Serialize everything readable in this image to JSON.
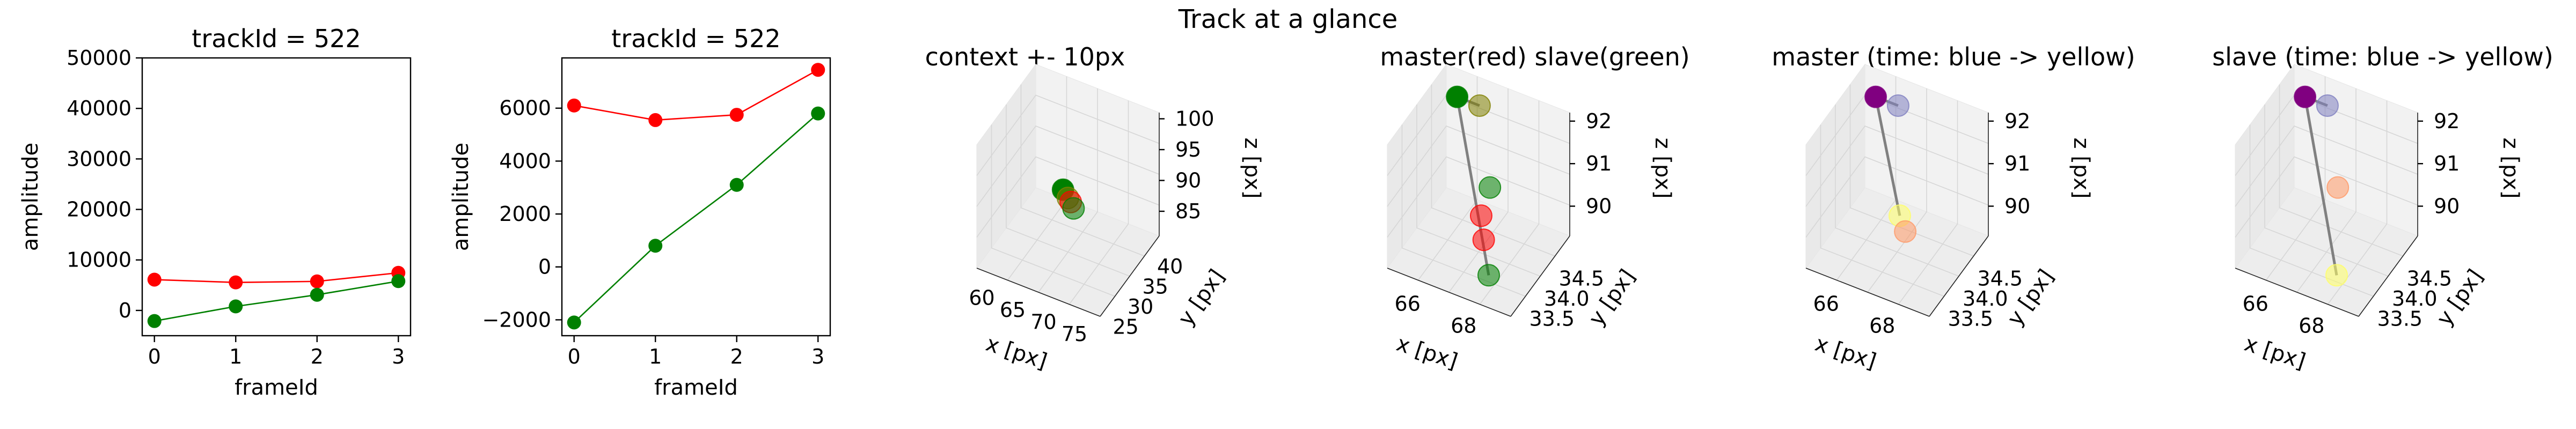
{
  "figure": {
    "suptitle": "Track at a glance"
  },
  "colors": {
    "master": "#ff0000",
    "slave": "#008000",
    "time_start": "#800080",
    "time_mid": "#8080c0",
    "time_end": "#ffff66",
    "connector": "#808080"
  },
  "chart_data": [
    {
      "type": "line",
      "title": "trackId = 522",
      "xlabel": "frameId",
      "ylabel": "amplitude",
      "x": [
        0,
        1,
        2,
        3
      ],
      "xticks": [
        "0",
        "1",
        "2",
        "3"
      ],
      "yticks": [
        "0",
        "10000",
        "20000",
        "30000",
        "40000",
        "50000"
      ],
      "yticks_values": [
        0,
        10000,
        20000,
        30000,
        40000,
        50000
      ],
      "xlim": [
        -0.15,
        3.15
      ],
      "ylim": [
        -5000,
        50000
      ],
      "series": [
        {
          "color": "#ff0000",
          "values": [
            6100,
            5550,
            5750,
            7450
          ]
        },
        {
          "color": "#008000",
          "values": [
            -2100,
            800,
            3100,
            5800
          ]
        }
      ]
    },
    {
      "type": "line",
      "title": "trackId = 522",
      "xlabel": "frameId",
      "ylabel": "amplitude",
      "x": [
        0,
        1,
        2,
        3
      ],
      "xticks": [
        "0",
        "1",
        "2",
        "3"
      ],
      "yticks": [
        "−2000",
        "0",
        "2000",
        "4000",
        "6000"
      ],
      "yticks_values": [
        -2000,
        0,
        2000,
        4000,
        6000
      ],
      "xlim": [
        -0.15,
        3.15
      ],
      "ylim": [
        -2600,
        7900
      ],
      "series": [
        {
          "color": "#ff0000",
          "values": [
            6100,
            5550,
            5750,
            7450
          ]
        },
        {
          "color": "#008000",
          "values": [
            -2100,
            800,
            3100,
            5800
          ]
        }
      ]
    },
    {
      "type": "scatter",
      "projection": "3d",
      "title": "context +- 10px",
      "xlabel": "x [px]",
      "ylabel": "y [px]",
      "zlabel": "z [px]",
      "xticks": [
        "60",
        "65",
        "70",
        "75"
      ],
      "yticks": [
        "25",
        "30",
        "35",
        "40"
      ],
      "zticks": [
        "85",
        "90",
        "95",
        "100"
      ],
      "xlim": [
        57,
        77
      ],
      "ylim": [
        24,
        44
      ],
      "zlim": [
        81,
        101
      ],
      "points": [
        {
          "x": 66.2,
          "y": 34.0,
          "z": 90.8,
          "color": "#008000"
        },
        {
          "x": 66.9,
          "y": 34.2,
          "z": 89.6,
          "color": "#808000"
        },
        {
          "x": 67.4,
          "y": 34.1,
          "z": 89.2,
          "color": "#ff0000"
        },
        {
          "x": 68.0,
          "y": 33.8,
          "z": 88.6,
          "color": "#008000"
        }
      ],
      "lines": []
    },
    {
      "type": "scatter",
      "projection": "3d",
      "title": "master(red) slave(green)",
      "xlabel": "x [px]",
      "ylabel": "y [px]",
      "zlabel": "z [px]",
      "xticks": [
        "66",
        "68"
      ],
      "yticks": [
        "33.5",
        "34.0",
        "34.5"
      ],
      "zticks": [
        "90",
        "91",
        "92"
      ],
      "xlim": [
        64.8,
        69.2
      ],
      "ylim": [
        33.2,
        35.2
      ],
      "zlim": [
        89.3,
        92.2
      ],
      "points": [
        {
          "x": 65.5,
          "y": 34.9,
          "z": 91.9,
          "color": "#008000"
        },
        {
          "x": 66.3,
          "y": 34.9,
          "z": 91.9,
          "color": "#808000"
        },
        {
          "x": 67.2,
          "y": 34.1,
          "z": 90.3,
          "color": "#ff0000"
        },
        {
          "x": 67.5,
          "y": 33.9,
          "z": 90.0,
          "color": "#ff0000"
        },
        {
          "x": 67.3,
          "y": 34.3,
          "z": 90.8,
          "color": "#008000"
        },
        {
          "x": 68.1,
          "y": 33.5,
          "z": 89.7,
          "color": "#008000"
        }
      ],
      "lines": [
        {
          "from": [
            65.5,
            34.9,
            91.9
          ],
          "to": [
            68.1,
            33.5,
            89.7
          ]
        },
        {
          "from": [
            65.5,
            34.9,
            91.9
          ],
          "to": [
            66.3,
            34.9,
            91.9
          ]
        }
      ]
    },
    {
      "type": "scatter",
      "projection": "3d",
      "title": "master (time: blue -> yellow)",
      "xlabel": "x [px]",
      "ylabel": "y [px]",
      "zlabel": "z [px]",
      "xticks": [
        "66",
        "68"
      ],
      "yticks": [
        "33.5",
        "34.0",
        "34.5"
      ],
      "zticks": [
        "90",
        "91",
        "92"
      ],
      "xlim": [
        64.8,
        69.2
      ],
      "ylim": [
        33.2,
        35.2
      ],
      "zlim": [
        89.3,
        92.2
      ],
      "points": [
        {
          "x": 65.5,
          "y": 34.9,
          "z": 91.9,
          "color": "#800080"
        },
        {
          "x": 66.3,
          "y": 34.9,
          "z": 91.9,
          "color": "#8080c0"
        },
        {
          "x": 67.2,
          "y": 34.1,
          "z": 90.3,
          "color": "#ffff66"
        },
        {
          "x": 67.5,
          "y": 34.0,
          "z": 90.1,
          "color": "#ff9966"
        }
      ],
      "lines": [
        {
          "from": [
            65.5,
            34.9,
            91.9
          ],
          "to": [
            67.2,
            34.1,
            90.3
          ]
        },
        {
          "from": [
            65.5,
            34.9,
            91.9
          ],
          "to": [
            66.3,
            34.9,
            91.9
          ]
        }
      ]
    },
    {
      "type": "scatter",
      "projection": "3d",
      "title": "slave (time: blue -> yellow)",
      "xlabel": "x [px]",
      "ylabel": "y [px]",
      "zlabel": "z [px]",
      "xticks": [
        "66",
        "68"
      ],
      "yticks": [
        "33.5",
        "34.0",
        "34.5"
      ],
      "zticks": [
        "90",
        "91",
        "92"
      ],
      "xlim": [
        64.8,
        69.2
      ],
      "ylim": [
        33.2,
        35.2
      ],
      "zlim": [
        89.3,
        92.2
      ],
      "points": [
        {
          "x": 65.5,
          "y": 34.9,
          "z": 91.9,
          "color": "#800080"
        },
        {
          "x": 66.3,
          "y": 34.9,
          "z": 91.9,
          "color": "#8080c0"
        },
        {
          "x": 67.3,
          "y": 34.3,
          "z": 90.8,
          "color": "#ff9966"
        },
        {
          "x": 68.1,
          "y": 33.5,
          "z": 89.7,
          "color": "#ffff66"
        }
      ],
      "lines": [
        {
          "from": [
            65.5,
            34.9,
            91.9
          ],
          "to": [
            68.1,
            33.5,
            89.7
          ]
        },
        {
          "from": [
            65.5,
            34.9,
            91.9
          ],
          "to": [
            66.3,
            34.9,
            91.9
          ]
        }
      ]
    }
  ]
}
